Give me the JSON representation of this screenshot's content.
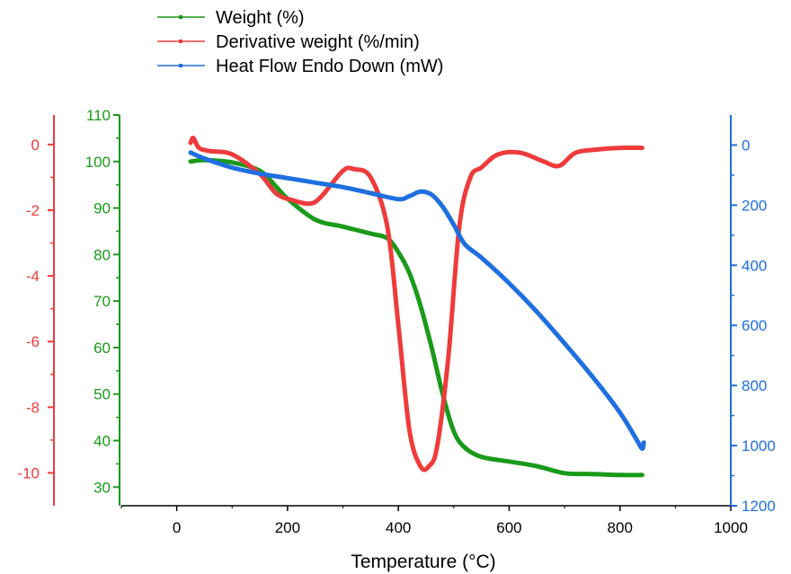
{
  "chart_data": {
    "type": "line",
    "xlabel": "Temperature (°C)",
    "xlim": [
      -100,
      1000
    ],
    "x_ticks": [
      0,
      200,
      400,
      600,
      800,
      1000
    ],
    "x_tick_labels": [
      "0",
      "200",
      "400",
      "600",
      "800",
      "1000"
    ],
    "y_axes": [
      {
        "id": "weight",
        "color": "#1a9a1a",
        "range": [
          26,
          110
        ],
        "ticks": [
          30,
          40,
          50,
          60,
          70,
          80,
          90,
          100,
          110
        ],
        "tick_labels": [
          "30",
          "40",
          "50",
          "60",
          "70",
          "80",
          "90",
          "100",
          "110"
        ]
      },
      {
        "id": "derivative",
        "color": "#ee3b3b",
        "range": [
          -11,
          0.9
        ],
        "ticks": [
          -10,
          -8,
          -6,
          -4,
          -2,
          0
        ],
        "tick_labels": [
          "-10",
          "-8",
          "-6",
          "-4",
          "-2",
          "0"
        ]
      },
      {
        "id": "heatflow",
        "color": "#1f6fe0",
        "range": [
          1200,
          -100
        ],
        "ticks": [
          0,
          200,
          400,
          600,
          800,
          1000,
          1200
        ],
        "tick_labels": [
          "0",
          "200",
          "400",
          "600",
          "800",
          "1000",
          "1200"
        ]
      }
    ],
    "grid": false,
    "legend_position": "top-left",
    "series": [
      {
        "name": "Weight (%)",
        "axis": "weight",
        "color": "#1a9a1a",
        "x": [
          25,
          50,
          100,
          150,
          180,
          200,
          250,
          300,
          350,
          380,
          400,
          420,
          440,
          460,
          480,
          500,
          520,
          550,
          600,
          650,
          700,
          750,
          800,
          840
        ],
        "y": [
          100,
          100.3,
          99.8,
          98,
          94.5,
          92,
          87.5,
          86,
          84.5,
          83.5,
          80.5,
          76,
          69,
          60,
          50,
          42,
          38.5,
          36.5,
          35.5,
          34.5,
          33,
          32.8,
          32.6,
          32.6
        ]
      },
      {
        "name": "Derivative weight (%/min)",
        "axis": "derivative",
        "color": "#ee3b3b",
        "x": [
          25,
          30,
          40,
          60,
          100,
          150,
          180,
          210,
          240,
          260,
          300,
          320,
          350,
          380,
          400,
          420,
          440,
          455,
          470,
          490,
          510,
          530,
          550,
          580,
          620,
          660,
          690,
          720,
          760,
          800,
          840
        ],
        "y": [
          0.05,
          0.2,
          -0.1,
          -0.2,
          -0.3,
          -0.9,
          -1.5,
          -1.7,
          -1.8,
          -1.6,
          -0.8,
          -0.75,
          -1.0,
          -2.5,
          -5.5,
          -8.7,
          -9.8,
          -9.8,
          -9.2,
          -6.5,
          -2.5,
          -1.0,
          -0.7,
          -0.3,
          -0.25,
          -0.5,
          -0.65,
          -0.25,
          -0.15,
          -0.1,
          -0.1
        ]
      },
      {
        "name": "Heat Flow Endo Down (mW)",
        "axis": "heatflow",
        "color": "#1f6fe0",
        "x": [
          25,
          50,
          100,
          150,
          200,
          250,
          300,
          350,
          400,
          420,
          440,
          460,
          480,
          500,
          520,
          550,
          600,
          650,
          700,
          750,
          800,
          830,
          840,
          843
        ],
        "y": [
          25,
          45,
          75,
          95,
          110,
          125,
          140,
          160,
          180,
          170,
          155,
          165,
          205,
          265,
          330,
          375,
          460,
          555,
          660,
          770,
          890,
          980,
          1010,
          990
        ]
      }
    ]
  }
}
